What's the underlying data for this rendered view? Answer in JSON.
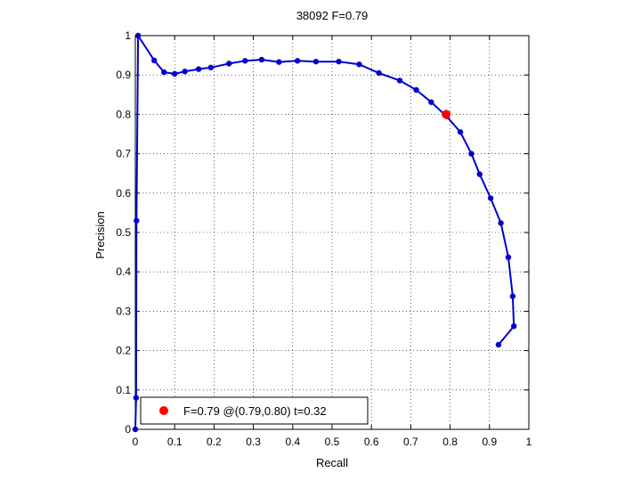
{
  "chart_data": {
    "type": "line",
    "title": "38092 F=0.79",
    "xlabel": "Recall",
    "ylabel": "Precision",
    "xlim": [
      0,
      1
    ],
    "ylim": [
      0,
      1
    ],
    "xticks": [
      "0",
      "0.1",
      "0.2",
      "0.3",
      "0.4",
      "0.5",
      "0.6",
      "0.7",
      "0.8",
      "0.9",
      "1"
    ],
    "yticks": [
      "0",
      "0.1",
      "0.2",
      "0.3",
      "0.4",
      "0.5",
      "0.6",
      "0.7",
      "0.8",
      "0.9",
      "1"
    ],
    "grid": true,
    "legend_position": "bottom-left",
    "series": [
      {
        "color": "#0000cc",
        "marker": "dot",
        "points": [
          [
            0.923,
            0.215
          ],
          [
            0.962,
            0.262
          ],
          [
            0.959,
            0.338
          ],
          [
            0.948,
            0.437
          ],
          [
            0.929,
            0.524
          ],
          [
            0.903,
            0.587
          ],
          [
            0.875,
            0.648
          ],
          [
            0.854,
            0.7
          ],
          [
            0.826,
            0.755
          ],
          [
            0.791,
            0.795
          ],
          [
            0.752,
            0.831
          ],
          [
            0.714,
            0.862
          ],
          [
            0.672,
            0.886
          ],
          [
            0.619,
            0.905
          ],
          [
            0.569,
            0.927
          ],
          [
            0.517,
            0.934
          ],
          [
            0.459,
            0.934
          ],
          [
            0.412,
            0.936
          ],
          [
            0.365,
            0.933
          ],
          [
            0.321,
            0.939
          ],
          [
            0.279,
            0.936
          ],
          [
            0.238,
            0.929
          ],
          [
            0.192,
            0.919
          ],
          [
            0.161,
            0.915
          ],
          [
            0.126,
            0.909
          ],
          [
            0.1,
            0.903
          ],
          [
            0.073,
            0.907
          ],
          [
            0.048,
            0.937
          ],
          [
            0.007,
            1.0
          ],
          [
            0.003,
            0.53
          ],
          [
            0.002,
            0.08
          ],
          [
            0.0,
            0.0
          ]
        ]
      }
    ],
    "highlight": {
      "x": 0.79,
      "y": 0.8,
      "color": "#ff0000",
      "label": "F=0.79 @(0.79,0.80) t=0.32"
    }
  }
}
